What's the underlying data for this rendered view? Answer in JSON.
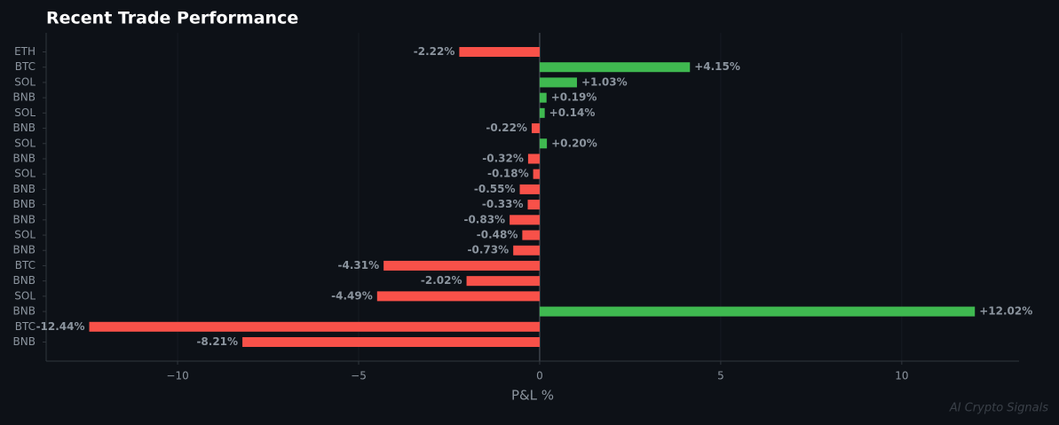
{
  "chart_data": {
    "type": "barh",
    "title": "Recent Trade Performance",
    "categories": [
      "ETH",
      "BTC",
      "SOL",
      "BNB",
      "SOL",
      "BNB",
      "SOL",
      "BNB",
      "SOL",
      "BNB",
      "BNB",
      "BNB",
      "SOL",
      "BNB",
      "BTC",
      "BNB",
      "SOL",
      "BNB",
      "BTC",
      "BNB"
    ],
    "values": [
      -2.22,
      4.15,
      1.03,
      0.19,
      0.14,
      -0.22,
      0.2,
      -0.32,
      -0.18,
      -0.55,
      -0.33,
      -0.83,
      -0.48,
      -0.73,
      -4.31,
      -2.02,
      -4.49,
      12.02,
      -12.44,
      -8.21
    ],
    "value_labels": [
      "-2.22%",
      "+4.15%",
      "+1.03%",
      "+0.19%",
      "+0.14%",
      "-0.22%",
      "+0.20%",
      "-0.32%",
      "-0.18%",
      "-0.55%",
      "-0.33%",
      "-0.83%",
      "-0.48%",
      "-0.73%",
      "-4.31%",
      "-2.02%",
      "-4.49%",
      "+12.02%",
      "-12.44%",
      "-8.21%"
    ],
    "positive_color": "#3fb950",
    "negative_color": "#f85149",
    "xlabel": "P&L %",
    "xlim": [
      -13.63,
      13.24
    ],
    "xticks": [
      {
        "value": -10,
        "label": "−10"
      },
      {
        "value": -5,
        "label": "−5"
      },
      0,
      5,
      10
    ],
    "grid": true,
    "watermark": "AI Crypto Signals"
  }
}
